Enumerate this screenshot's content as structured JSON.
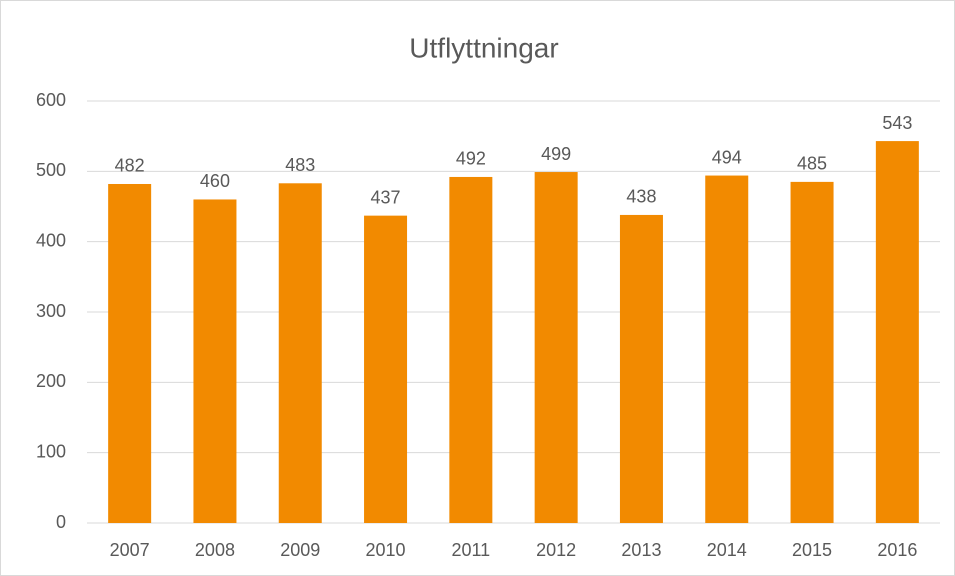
{
  "chart_data": {
    "type": "bar",
    "title": "Utflyttningar",
    "categories": [
      "2007",
      "2008",
      "2009",
      "2010",
      "2011",
      "2012",
      "2013",
      "2014",
      "2015",
      "2016"
    ],
    "values": [
      482,
      460,
      483,
      437,
      492,
      499,
      438,
      494,
      485,
      543
    ],
    "color": "#f28a00",
    "ylim": [
      0,
      600
    ],
    "yticks": [
      0,
      100,
      200,
      300,
      400,
      500,
      600
    ],
    "grid": true
  }
}
